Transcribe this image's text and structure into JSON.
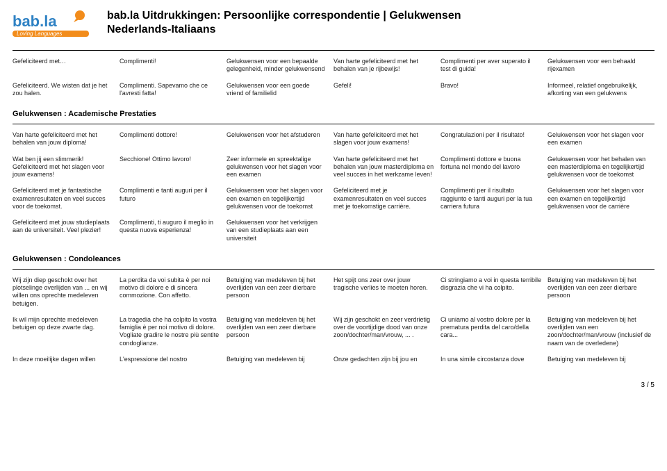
{
  "colors": {
    "orange": "#f28c1b",
    "blue": "#2f82c4",
    "text": "#222222",
    "black": "#000000",
    "rule": "#000000"
  },
  "logo": {
    "brand_top": "bab.la",
    "brand_bottom": "Loving Languages"
  },
  "title": {
    "line1": "bab.la Uitdrukkingen: Persoonlijke correspondentie | Gelukwensen",
    "line2": "Nederlands-Italiaans"
  },
  "sections": [
    {
      "heading": null,
      "rows": [
        [
          "Gefeliciteerd met…",
          "Complimenti!",
          "Gelukwensen voor een bepaalde gelegenheid, minder gelukwensend",
          "Van harte gefeliciteerd met het behalen van je rijbewijs!",
          "Complimenti per aver superato il test di guida!",
          "Gelukwensen voor een behaald rijexamen"
        ],
        [
          "Gefeliciteerd. We wisten dat je het zou halen.",
          "Complimenti. Sapevamo che ce l'avresti fatta!",
          "Gelukwensen voor een goede vriend of familielid",
          "Gefeli!",
          "Bravo!",
          "Informeel, relatief ongebruikelijk, afkorting van een gelukwens"
        ]
      ]
    },
    {
      "heading": "Gelukwensen : Academische Prestaties",
      "rows": [
        [
          "Van harte gefeliciteerd met het behalen van jouw diploma!",
          "Complimenti dottore!",
          "Gelukwensen voor het afstuderen",
          "Van harte gefeliciteerd met het slagen voor jouw examens!",
          "Congratulazioni per il risultato!",
          "Gelukwensen voor het slagen voor een examen"
        ],
        [
          "Wat ben jij een slimmerik! Gefeliciteerd met het slagen voor jouw examens!",
          "Secchione! Ottimo lavoro!",
          "Zeer informele en spreektalige gelukwensen voor het slagen voor een examen",
          "Van harte gefeliciteerd met het behalen van jouw masterdiploma en veel succes in het werkzame leven!",
          "Complimenti dottore e buona fortuna nel mondo del lavoro",
          "Gelukwensen voor het behalen van een masterdiploma en tegelijkertijd gelukwensen voor de toekomst"
        ],
        [
          "Gefeliciteerd met je fantastische examenresultaten en veel succes voor de toekomst.",
          "Complimenti e tanti auguri per il futuro",
          "Gelukwensen voor het slagen voor een examen en tegelijkertijd gelukwensen voor de toekomst",
          "Gefeliciteerd met je examenresultaten en veel succes met je toekomstige carrière.",
          "Complimenti per il risultato raggiunto e tanti auguri per la tua carriera futura",
          "Gelukwensen voor het slagen voor een examen en tegelijkertijd gelukwensen voor de carrière"
        ],
        [
          "Gefeliciteerd met jouw studieplaats aan de universiteit. Veel plezier!",
          "Complimenti, ti auguro il meglio in questa nuova esperienza!",
          "Gelukwensen voor het verkrijgen van een studieplaats aan een universiteit",
          "",
          "",
          ""
        ]
      ]
    },
    {
      "heading": "Gelukwensen : Condoleances",
      "rows": [
        [
          "Wij zijn diep geschokt over het plotselinge overlijden van ... en wij willen ons oprechte medeleven betuigen.",
          "La perdita da voi subita è per noi motivo di dolore e di sincera commozione. Con affetto.",
          "Betuiging van medeleven bij het overlijden van een zeer dierbare persoon",
          "Het spijt ons zeer over jouw tragische verlies te moeten horen.",
          "Ci stringiamo a voi in questa terribile disgrazia che vi ha colpito.",
          "Betuiging van medeleven bij het overlijden van een zeer dierbare persoon"
        ],
        [
          "Ik wil mijn oprechte medeleven betuigen op deze zwarte dag.",
          "La tragedia che ha colpito la vostra famiglia è per noi motivo di dolore. Vogliate gradire le nostre più sentite condoglianze.",
          "Betuiging van medeleven bij het overlijden van een zeer dierbare persoon",
          "Wij zijn geschokt en zeer verdrietig over de voortijdige dood van onze zoon/dochter/man/vrouw, ... .",
          "Ci uniamo al vostro dolore per la prematura perdita del caro/della cara...",
          "Betuiging van medeleven bij het overlijden van een zoon/dochter/man/vrouw (inclusief de naam van de overledene)"
        ],
        [
          "In deze moeilijke dagen willen",
          "L'espressione del nostro",
          "Betuiging van medeleven bij",
          "Onze gedachten zijn bij jou en",
          "In una simile circostanza dove",
          "Betuiging van medeleven bij"
        ]
      ]
    }
  ],
  "page_number": "3 / 5"
}
